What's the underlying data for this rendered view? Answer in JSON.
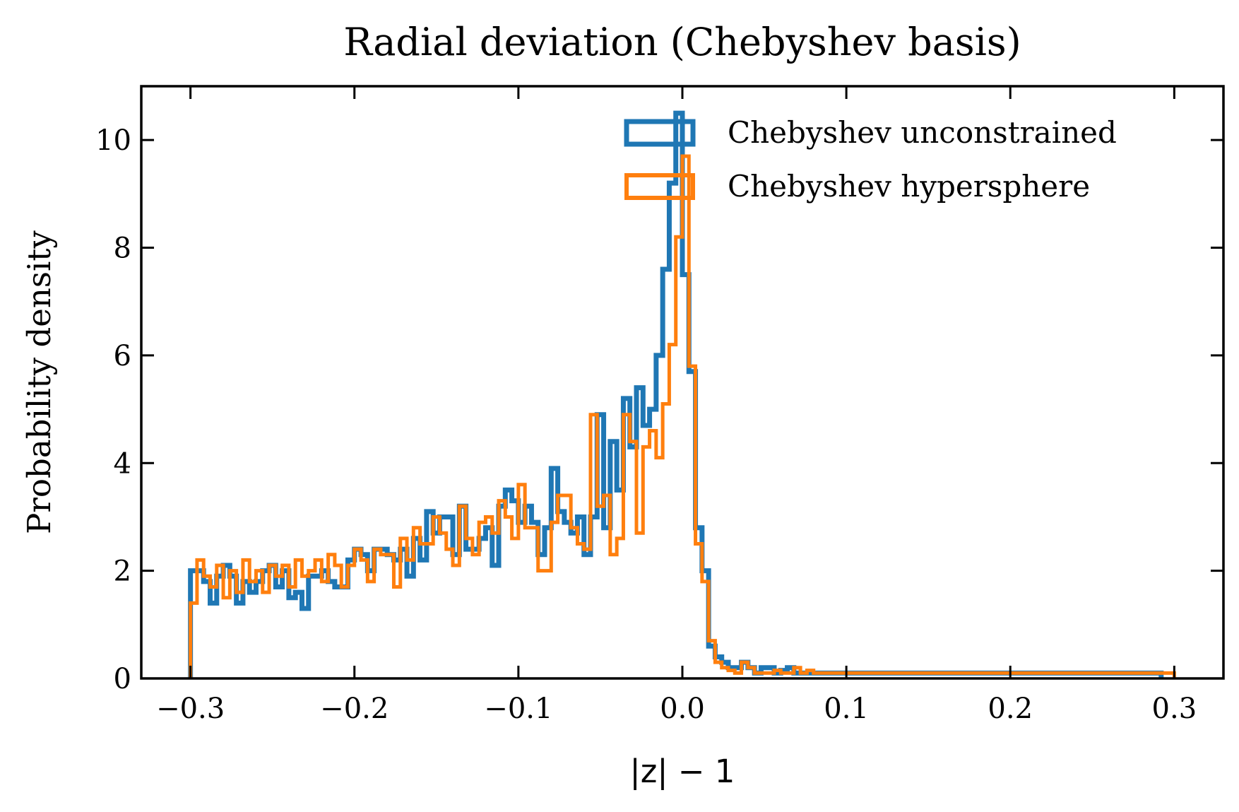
{
  "chart_data": {
    "type": "histogram",
    "title": "Radial deviation (Chebyshev basis)",
    "xlabel": "|z| − 1",
    "ylabel": "Probability density",
    "xlim": [
      -0.33,
      0.33
    ],
    "ylim": [
      0,
      11
    ],
    "xticks": [
      -0.3,
      -0.2,
      -0.1,
      0.0,
      0.1,
      0.2,
      0.3
    ],
    "xtick_labels": [
      "−0.3",
      "−0.2",
      "−0.1",
      "0.0",
      "0.1",
      "0.2",
      "0.3"
    ],
    "yticks": [
      0,
      2,
      4,
      6,
      8,
      10
    ],
    "ytick_labels": [
      "0",
      "2",
      "4",
      "6",
      "8",
      "10"
    ],
    "grid": false,
    "legend_position": "top-right",
    "bin_start": -0.3,
    "bin_width": 0.004,
    "series": [
      {
        "name": "Chebyshev unconstrained",
        "color": "#1f77b4",
        "values": [
          2.0,
          2.0,
          1.8,
          1.4,
          1.9,
          2.1,
          1.9,
          1.4,
          1.8,
          1.6,
          1.8,
          2.0,
          2.1,
          1.7,
          2.0,
          1.5,
          1.6,
          1.3,
          1.9,
          1.9,
          2.0,
          1.8,
          1.7,
          1.7,
          2.2,
          2.4,
          2.3,
          2.0,
          2.4,
          2.4,
          2.3,
          2.2,
          2.4,
          1.9,
          2.6,
          2.2,
          3.1,
          2.7,
          3.0,
          3.0,
          2.3,
          3.2,
          2.4,
          2.4,
          2.6,
          2.8,
          2.1,
          3.2,
          3.5,
          3.3,
          2.9,
          3.2,
          2.9,
          2.3,
          2.8,
          3.9,
          3.1,
          2.9,
          2.7,
          3.0,
          2.3,
          3.0,
          4.9,
          2.8,
          4.4,
          3.5,
          5.2,
          4.3,
          5.4,
          4.7,
          5.0,
          6.0,
          7.6,
          9.2,
          10.5,
          7.5,
          5.7,
          2.8,
          2.0,
          0.6,
          0.4,
          0.3,
          0.2,
          0.2,
          0.3,
          0.2,
          0.1,
          0.2,
          0.2,
          0.1,
          0.15,
          0.2,
          0.1,
          0.1,
          0.1,
          0.1,
          0.1,
          0.1,
          0.1,
          0.1,
          0.1,
          0.1,
          0.1,
          0.1,
          0.1,
          0.1,
          0.1,
          0.1,
          0.1,
          0.1,
          0.1,
          0.1,
          0.1,
          0.1,
          0.1,
          0.1,
          0.1,
          0.1,
          0.1,
          0.1,
          0.1,
          0.1,
          0.1,
          0.1,
          0.1,
          0.1,
          0.1,
          0.1,
          0.1,
          0.1,
          0.1,
          0.1,
          0.1,
          0.1,
          0.1,
          0.1,
          0.1,
          0.1,
          0.1,
          0.1,
          0.1,
          0.1,
          0.1,
          0.1,
          0.1,
          0.1,
          0.1,
          0.1
        ]
      },
      {
        "name": "Chebyshev hypersphere",
        "color": "#ff7f0e",
        "values": [
          1.4,
          2.2,
          1.9,
          1.7,
          2.1,
          1.5,
          2.0,
          1.6,
          2.2,
          1.8,
          2.0,
          1.6,
          2.1,
          1.9,
          2.1,
          1.7,
          2.2,
          1.9,
          2.0,
          2.2,
          1.8,
          2.3,
          2.1,
          1.7,
          2.1,
          2.4,
          2.2,
          1.8,
          2.4,
          2.3,
          2.3,
          1.7,
          2.6,
          2.2,
          2.8,
          2.5,
          2.5,
          3.0,
          2.7,
          2.4,
          2.1,
          3.2,
          2.6,
          2.3,
          2.9,
          3.0,
          2.7,
          3.3,
          3.0,
          2.6,
          3.6,
          2.8,
          2.8,
          2.0,
          2.0,
          2.9,
          3.4,
          3.4,
          2.8,
          2.5,
          2.4,
          4.9,
          3.2,
          3.4,
          2.3,
          2.6,
          4.9,
          4.4,
          2.7,
          4.3,
          4.6,
          4.1,
          5.1,
          6.2,
          8.2,
          9.7,
          5.8,
          2.5,
          1.8,
          0.7,
          0.3,
          0.2,
          0.15,
          0.1,
          0.3,
          0.2,
          0.1,
          0.1,
          0.1,
          0.15,
          0.1,
          0.1,
          0.2,
          0.1,
          0.15,
          0.1,
          0.1,
          0.1,
          0.1,
          0.1,
          0.1,
          0.1,
          0.1,
          0.1,
          0.1,
          0.1,
          0.1,
          0.1,
          0.1,
          0.1,
          0.1,
          0.1,
          0.1,
          0.1,
          0.1,
          0.1,
          0.1,
          0.1,
          0.1,
          0.1,
          0.1,
          0.1,
          0.1,
          0.1,
          0.1,
          0.1,
          0.1,
          0.1,
          0.1,
          0.1,
          0.1,
          0.1,
          0.1,
          0.1,
          0.1,
          0.1,
          0.1,
          0.1,
          0.1,
          0.1,
          0.1,
          0.1,
          0.1,
          0.1,
          0.1,
          0.1,
          0.1,
          0.1,
          0.1,
          0.1
        ]
      }
    ]
  }
}
